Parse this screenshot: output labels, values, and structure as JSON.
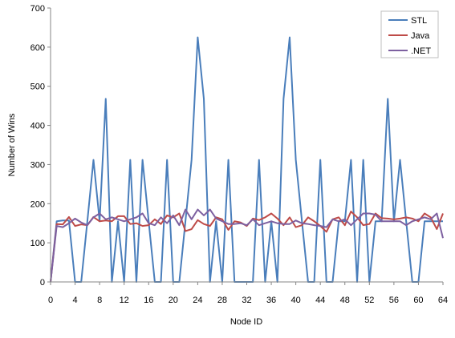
{
  "chart_data": {
    "type": "line",
    "title": "",
    "xlabel": "Node ID",
    "ylabel": "Number of Wins",
    "xlim": [
      0,
      64
    ],
    "ylim": [
      0,
      700
    ],
    "x_ticks": [
      0,
      4,
      8,
      12,
      16,
      20,
      24,
      28,
      32,
      36,
      40,
      44,
      48,
      52,
      56,
      60,
      64
    ],
    "y_ticks": [
      0,
      100,
      200,
      300,
      400,
      500,
      600,
      700
    ],
    "grid": false,
    "legend_position": "top-right",
    "x": [
      0,
      1,
      2,
      3,
      4,
      5,
      6,
      7,
      8,
      9,
      10,
      11,
      12,
      13,
      14,
      15,
      16,
      17,
      18,
      19,
      20,
      21,
      22,
      23,
      24,
      25,
      26,
      27,
      28,
      29,
      30,
      31,
      32,
      33,
      34,
      35,
      36,
      37,
      38,
      39,
      40,
      41,
      42,
      43,
      44,
      45,
      46,
      47,
      48,
      49,
      50,
      51,
      52,
      53,
      54,
      55,
      56,
      57,
      58,
      59,
      60,
      61,
      62,
      63,
      64
    ],
    "series": [
      {
        "name": "STL",
        "color": "#4a7ebb",
        "values": [
          0,
          155,
          157,
          157,
          0,
          0,
          155,
          312,
          155,
          468,
          0,
          155,
          0,
          312,
          0,
          312,
          155,
          0,
          0,
          312,
          0,
          0,
          155,
          312,
          625,
          468,
          0,
          155,
          0,
          312,
          0,
          0,
          0,
          0,
          312,
          0,
          155,
          0,
          468,
          625,
          312,
          155,
          0,
          0,
          312,
          0,
          0,
          155,
          155,
          312,
          0,
          312,
          0,
          155,
          155,
          468,
          155,
          312,
          155,
          0,
          0,
          155,
          155,
          155,
          155
        ]
      },
      {
        "name": "Java",
        "color": "#be4b48",
        "values": [
          0,
          148,
          147,
          166,
          143,
          147,
          145,
          166,
          155,
          157,
          155,
          168,
          168,
          148,
          150,
          143,
          145,
          160,
          148,
          170,
          165,
          175,
          130,
          135,
          158,
          148,
          143,
          165,
          160,
          133,
          155,
          152,
          143,
          162,
          158,
          165,
          175,
          162,
          145,
          165,
          140,
          145,
          165,
          155,
          143,
          128,
          160,
          165,
          145,
          180,
          165,
          145,
          148,
          175,
          163,
          162,
          160,
          162,
          165,
          162,
          155,
          175,
          165,
          135,
          175
        ]
      },
      {
        "name": ".NET",
        "color": "#7d60a0",
        "values": [
          0,
          143,
          140,
          150,
          162,
          152,
          145,
          165,
          175,
          160,
          165,
          160,
          155,
          160,
          165,
          175,
          150,
          145,
          165,
          150,
          170,
          145,
          185,
          160,
          185,
          170,
          185,
          162,
          155,
          148,
          148,
          150,
          145,
          160,
          145,
          150,
          155,
          150,
          148,
          148,
          157,
          150,
          148,
          145,
          143,
          140,
          160,
          155,
          160,
          145,
          160,
          175,
          175,
          172,
          155,
          155,
          155,
          155,
          145,
          155,
          160,
          165,
          160,
          175,
          112
        ]
      }
    ]
  }
}
